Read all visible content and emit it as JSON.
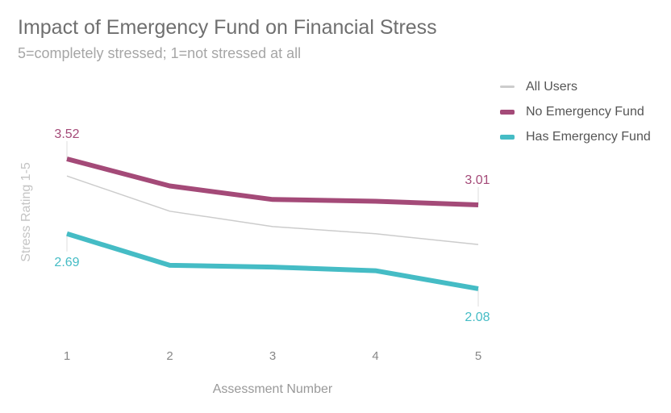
{
  "chart_data": {
    "type": "line",
    "title": "Impact of Emergency Fund on Financial Stress",
    "subtitle": "5=completely stressed; 1=not stressed at all",
    "xlabel": "Assessment Number",
    "ylabel": "Stress Rating 1-5",
    "x": [
      "1",
      "2",
      "3",
      "4",
      "5"
    ],
    "ylim": [
      1.5,
      3.9
    ],
    "grid": false,
    "legend_position": "top-right",
    "series": [
      {
        "name": "All Users",
        "color": "#cccccc",
        "values": [
          3.33,
          2.94,
          2.77,
          2.69,
          2.57
        ]
      },
      {
        "name": "No Emergency Fund",
        "color": "#a44a78",
        "values": [
          3.52,
          3.22,
          3.07,
          3.05,
          3.01
        ]
      },
      {
        "name": "Has Emergency Fund",
        "color": "#45bcc5",
        "values": [
          2.69,
          2.34,
          2.32,
          2.28,
          2.08
        ]
      }
    ],
    "annotations": [
      {
        "series": 1,
        "index": 0,
        "text": "3.52",
        "side": "above"
      },
      {
        "series": 1,
        "index": 4,
        "text": "3.01",
        "side": "above"
      },
      {
        "series": 2,
        "index": 0,
        "text": "2.69",
        "side": "below"
      },
      {
        "series": 2,
        "index": 4,
        "text": "2.08",
        "side": "below"
      }
    ]
  }
}
